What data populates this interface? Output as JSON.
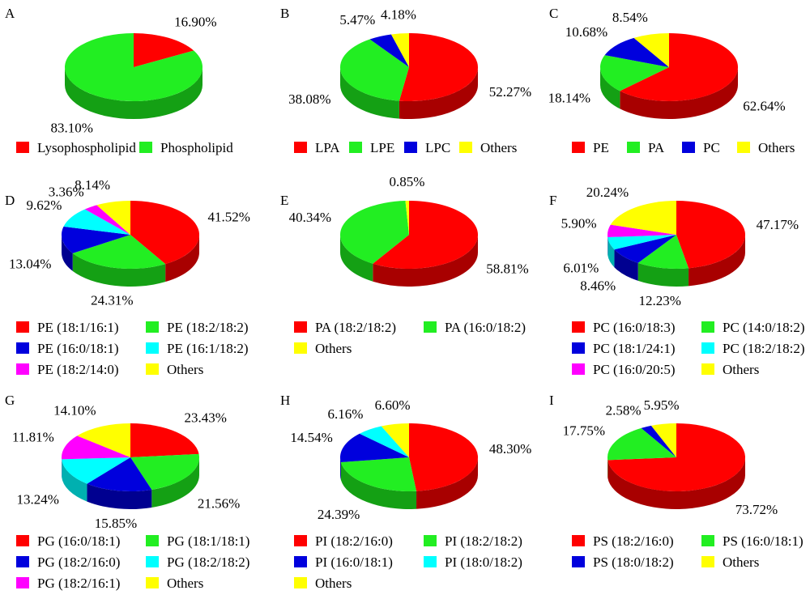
{
  "colors": {
    "red": "#ff0000",
    "red_side": "#a80000",
    "green": "#22ee22",
    "green_side": "#14a014",
    "blue": "#0000dd",
    "blue_side": "#000090",
    "cyan": "#00ffff",
    "cyan_side": "#00b0b0",
    "magenta": "#ff00ff",
    "magenta_side": "#b000b0",
    "yellow": "#ffff00",
    "yellow_side": "#b8b800"
  },
  "chart_data": [
    {
      "type": "pie",
      "panel": "A",
      "slices": [
        {
          "name": "Lysophospholipid",
          "value": 16.9,
          "label": "16.90%",
          "color": "red"
        },
        {
          "name": "Phospholipid",
          "value": 83.1,
          "label": "83.10%",
          "color": "green"
        }
      ],
      "legend_columns": 2
    },
    {
      "type": "pie",
      "panel": "B",
      "slices": [
        {
          "name": "LPA",
          "value": 52.27,
          "label": "52.27%",
          "color": "red"
        },
        {
          "name": "LPE",
          "value": 38.08,
          "label": "38.08%",
          "color": "green"
        },
        {
          "name": "LPC",
          "value": 5.47,
          "label": "5.47%",
          "color": "blue"
        },
        {
          "name": "Others",
          "value": 4.18,
          "label": "4.18%",
          "color": "yellow"
        }
      ],
      "legend_columns": 4
    },
    {
      "type": "pie",
      "panel": "C",
      "slices": [
        {
          "name": "PE",
          "value": 62.64,
          "label": "62.64%",
          "color": "red"
        },
        {
          "name": "PA",
          "value": 18.14,
          "label": "18.14%",
          "color": "green"
        },
        {
          "name": "PC",
          "value": 10.68,
          "label": "10.68%",
          "color": "blue"
        },
        {
          "name": "Others",
          "value": 8.54,
          "label": "8.54%",
          "color": "yellow"
        }
      ],
      "legend_columns": 4
    },
    {
      "type": "pie",
      "panel": "D",
      "slices": [
        {
          "name": "PE (18:1/16:1)",
          "value": 41.52,
          "label": "41.52%",
          "color": "red"
        },
        {
          "name": "PE (18:2/18:2)",
          "value": 24.31,
          "label": "24.31%",
          "color": "green"
        },
        {
          "name": "PE (16:0/18:1)",
          "value": 13.04,
          "label": "13.04%",
          "color": "blue"
        },
        {
          "name": "PE (16:1/18:2)",
          "value": 9.62,
          "label": "9.62%",
          "color": "cyan"
        },
        {
          "name": "PE (18:2/14:0)",
          "value": 3.36,
          "label": "3.36%",
          "color": "magenta"
        },
        {
          "name": "Others",
          "value": 8.14,
          "label": "8.14%",
          "color": "yellow"
        }
      ],
      "legend_columns": 2
    },
    {
      "type": "pie",
      "panel": "E",
      "slices": [
        {
          "name": "PA (18:2/18:2)",
          "value": 58.81,
          "label": "58.81%",
          "color": "red"
        },
        {
          "name": "PA (16:0/18:2)",
          "value": 40.34,
          "label": "40.34%",
          "color": "green"
        },
        {
          "name": "Others",
          "value": 0.85,
          "label": "0.85%",
          "color": "yellow"
        }
      ],
      "legend_columns": 2
    },
    {
      "type": "pie",
      "panel": "F",
      "slices": [
        {
          "name": "PC (16:0/18:3)",
          "value": 47.17,
          "label": "47.17%",
          "color": "red"
        },
        {
          "name": "PC (14:0/18:2)",
          "value": 12.23,
          "label": "12.23%",
          "color": "green"
        },
        {
          "name": "PC (18:1/24:1)",
          "value": 8.46,
          "label": "8.46%",
          "color": "blue"
        },
        {
          "name": "PC (18:2/18:2)",
          "value": 6.01,
          "label": "6.01%",
          "color": "cyan"
        },
        {
          "name": "PC (16:0/20:5)",
          "value": 5.9,
          "label": "5.90%",
          "color": "magenta"
        },
        {
          "name": "Others",
          "value": 20.24,
          "label": "20.24%",
          "color": "yellow"
        }
      ],
      "legend_columns": 2
    },
    {
      "type": "pie",
      "panel": "G",
      "slices": [
        {
          "name": "PG (16:0/18:1)",
          "value": 23.43,
          "label": "23.43%",
          "color": "red"
        },
        {
          "name": "PG (18:1/18:1)",
          "value": 21.56,
          "label": "21.56%",
          "color": "green"
        },
        {
          "name": "PG (18:2/16:0)",
          "value": 15.85,
          "label": "15.85%",
          "color": "blue"
        },
        {
          "name": "PG (18:2/18:2)",
          "value": 13.24,
          "label": "13.24%",
          "color": "cyan"
        },
        {
          "name": "PG (18:2/16:1)",
          "value": 11.81,
          "label": "11.81%",
          "color": "magenta"
        },
        {
          "name": "Others",
          "value": 14.1,
          "label": "14.10%",
          "color": "yellow"
        }
      ],
      "legend_columns": 2
    },
    {
      "type": "pie",
      "panel": "H",
      "slices": [
        {
          "name": "PI (18:2/16:0)",
          "value": 48.3,
          "label": "48.30%",
          "color": "red"
        },
        {
          "name": "PI (18:2/18:2)",
          "value": 24.39,
          "label": "24.39%",
          "color": "green"
        },
        {
          "name": "PI (16:0/18:1)",
          "value": 14.54,
          "label": "14.54%",
          "color": "blue"
        },
        {
          "name": "PI (18:0/18:2)",
          "value": 6.16,
          "label": "6.16%",
          "color": "cyan"
        },
        {
          "name": "Others",
          "value": 6.6,
          "label": "6.60%",
          "color": "yellow"
        }
      ],
      "legend_columns": 2
    },
    {
      "type": "pie",
      "panel": "I",
      "slices": [
        {
          "name": "PS (18:2/16:0)",
          "value": 73.72,
          "label": "73.72%",
          "color": "red"
        },
        {
          "name": "PS (16:0/18:1)",
          "value": 17.75,
          "label": "17.75%",
          "color": "green"
        },
        {
          "name": "PS (18:0/18:2)",
          "value": 2.58,
          "label": "2.58%",
          "color": "blue"
        },
        {
          "name": "Others",
          "value": 5.95,
          "label": "5.95%",
          "color": "yellow"
        }
      ],
      "legend_columns": 2
    }
  ]
}
